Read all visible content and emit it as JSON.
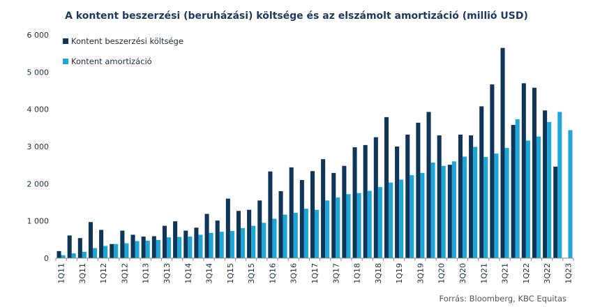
{
  "chart_data": {
    "type": "bar",
    "title": "A kontent beszerzési (beruházási) költsége és az elszámolt amortizáció (millió USD)",
    "xlabel": "",
    "ylabel": "",
    "ylim": [
      0,
      6000
    ],
    "y_ticks": [
      0,
      1000,
      2000,
      3000,
      4000,
      5000,
      6000
    ],
    "y_tick_labels": [
      "0",
      "1 000",
      "2 000",
      "3 000",
      "4 000",
      "5 000",
      "6 000"
    ],
    "grid": false,
    "legend_position": "top-left",
    "categories": [
      "1Q11",
      "2Q11",
      "3Q11",
      "4Q11",
      "1Q12",
      "2Q12",
      "3Q12",
      "4Q12",
      "1Q13",
      "2Q13",
      "3Q13",
      "4Q13",
      "1Q14",
      "2Q14",
      "3Q14",
      "4Q14",
      "1Q15",
      "2Q15",
      "3Q15",
      "4Q15",
      "1Q16",
      "2Q16",
      "3Q16",
      "4Q16",
      "1Q17",
      "2Q17",
      "3Q17",
      "4Q17",
      "1Q18",
      "2Q18",
      "3Q18",
      "4Q18",
      "1Q19",
      "2Q19",
      "3Q19",
      "4Q19",
      "1Q20",
      "2Q20",
      "3Q20",
      "4Q20",
      "1Q21",
      "2Q21",
      "3Q21",
      "4Q21",
      "1Q22",
      "2Q22",
      "3Q22",
      "4Q22",
      "1Q23"
    ],
    "x_tick_labels": [
      "1Q11",
      "3Q11",
      "1Q12",
      "3Q12",
      "1Q13",
      "3Q13",
      "1Q14",
      "3Q14",
      "1Q15",
      "3Q15",
      "1Q16",
      "3Q16",
      "1Q17",
      "3Q17",
      "1Q18",
      "3Q18",
      "1Q19",
      "3Q19",
      "1Q20",
      "3Q20",
      "1Q21",
      "3Q21",
      "1Q22",
      "3Q22",
      "1Q23"
    ],
    "series": [
      {
        "name": "Kontent beszerzési költsége",
        "color": "#0f3558",
        "values": [
          190,
          610,
          540,
          970,
          760,
          380,
          740,
          630,
          580,
          590,
          870,
          990,
          740,
          820,
          1190,
          1010,
          1600,
          1270,
          1300,
          1550,
          2330,
          1800,
          2440,
          2100,
          2340,
          2660,
          2290,
          2480,
          2980,
          3040,
          3250,
          3790,
          3000,
          3320,
          3640,
          3930,
          3300,
          2510,
          3320,
          3300,
          4080,
          4670,
          5650,
          3580,
          4700,
          4580,
          3970,
          2460,
          null
        ]
      },
      {
        "name": "Kontent amortizáció",
        "color": "#1fa6d9",
        "values": [
          80,
          130,
          170,
          270,
          330,
          380,
          400,
          460,
          470,
          490,
          560,
          570,
          580,
          630,
          680,
          710,
          730,
          810,
          870,
          950,
          1060,
          1170,
          1220,
          1330,
          1300,
          1550,
          1630,
          1720,
          1750,
          1810,
          1910,
          2030,
          2110,
          2230,
          2290,
          2570,
          2480,
          2600,
          2730,
          2990,
          2720,
          2810,
          2960,
          3730,
          3160,
          3270,
          3660,
          3930,
          3440
        ]
      }
    ]
  },
  "source": "Forrás: Bloomberg, KBC Equitas"
}
